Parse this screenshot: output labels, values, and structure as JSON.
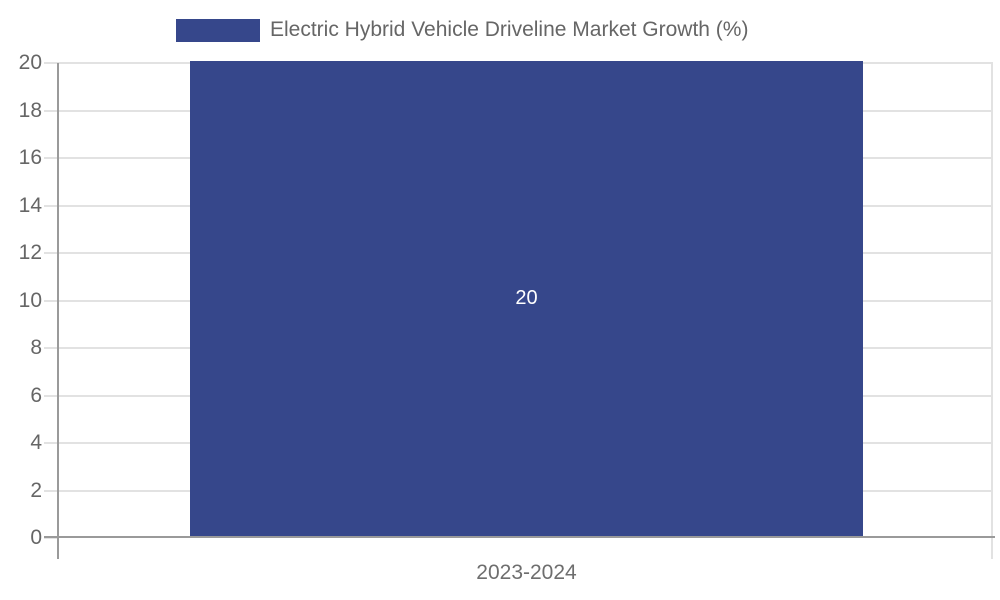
{
  "chart_data": {
    "type": "bar",
    "legend": "Electric Hybrid Vehicle Driveline Market Growth (%)",
    "legend_position": "top",
    "categories": [
      "2023-2024"
    ],
    "series": [
      {
        "name": "Electric Hybrid Vehicle Driveline Market Growth (%)",
        "values": [
          20
        ],
        "data_labels": [
          "20"
        ]
      }
    ],
    "xlabel": "",
    "ylabel": "",
    "ylim": [
      0,
      20
    ],
    "ytick_step": 2,
    "grid": "horizontal",
    "colors": {
      "bar": "#36478B",
      "axis": "#9a9a9a",
      "gridline": "#e2e2e2",
      "tick_label_text": "#666666",
      "legend_text": "#666666",
      "bar_label_text": "#ffffff",
      "background": "#ffffff"
    }
  }
}
